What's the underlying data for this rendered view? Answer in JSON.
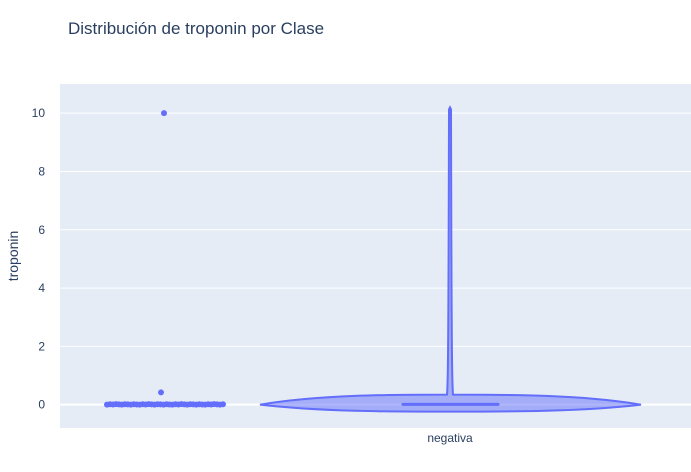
{
  "chart_data": {
    "type": "violin",
    "title": "Distribución de troponin por Clase",
    "xlabel": "",
    "ylabel": "troponin",
    "categories": [
      "negativa"
    ],
    "yticks": [
      0,
      2,
      4,
      6,
      8,
      10
    ],
    "ylim": [
      -0.8,
      11
    ],
    "grid": true,
    "legend": "none",
    "colors": {
      "plot_bg": "#e5ecf6",
      "grid": "#ffffff",
      "series": "#636efa",
      "violin_fill": "rgba(99,110,250,0.5)",
      "text": "#2a3f5f"
    },
    "series": [
      {
        "category": "negativa",
        "points": {
          "outliers": [
            10.0,
            0.42
          ],
          "dense_range": [
            0.0,
            0.06
          ]
        },
        "violin": {
          "min": 0.0,
          "max": 10.2,
          "median": 0.01,
          "q1": 0.0,
          "q3": 0.02
        }
      }
    ]
  }
}
